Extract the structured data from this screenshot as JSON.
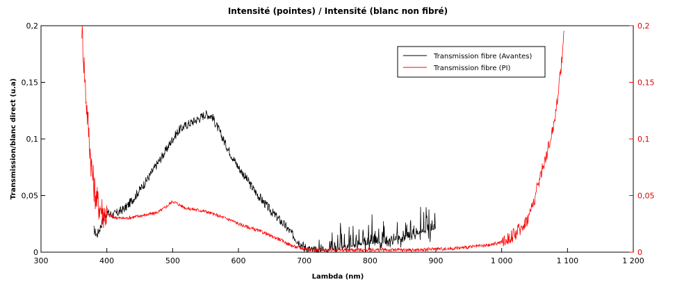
{
  "chart_data": {
    "type": "line",
    "title": "Intensité (pointes) / Intensité (blanc non fibré)",
    "xlabel": "Lambda (nm)",
    "ylabel": "Transmission/blanc direct (u.a)",
    "xlim": [
      300,
      1200
    ],
    "ylim": [
      0,
      0.2
    ],
    "y2lim": [
      0,
      0.2
    ],
    "x_ticks": [
      300,
      400,
      500,
      600,
      700,
      800,
      900,
      1000,
      1100,
      1200
    ],
    "x_tick_labels": [
      "300",
      "400",
      "500",
      "600",
      "700",
      "800",
      "900",
      "1 000",
      "1 100",
      "1 200"
    ],
    "y_ticks": [
      0,
      0.05,
      0.1,
      0.15,
      0.2
    ],
    "y_tick_labels": [
      "0",
      "0,05",
      "0,1",
      "0,15",
      "0,2"
    ],
    "y2_tick_labels": [
      "0",
      "0,05",
      "0,1",
      "0,15",
      "0,2"
    ],
    "grid": false,
    "legend_position": "top-right",
    "series": [
      {
        "name": "Transmission fibre (Avantes)",
        "color": "#000000",
        "axis": "left",
        "x": [
          380,
          385,
          390,
          395,
          400,
          405,
          410,
          420,
          430,
          440,
          450,
          460,
          470,
          480,
          490,
          500,
          510,
          520,
          530,
          540,
          550,
          560,
          570,
          580,
          590,
          600,
          610,
          620,
          630,
          640,
          650,
          660,
          670,
          680,
          690,
          700,
          710,
          720,
          740,
          760,
          780,
          800,
          820,
          840,
          860,
          870,
          880,
          890,
          900
        ],
        "y": [
          0.02,
          0.015,
          0.022,
          0.03,
          0.035,
          0.034,
          0.033,
          0.036,
          0.04,
          0.047,
          0.055,
          0.063,
          0.072,
          0.081,
          0.09,
          0.1,
          0.108,
          0.112,
          0.115,
          0.118,
          0.122,
          0.12,
          0.108,
          0.096,
          0.085,
          0.075,
          0.067,
          0.058,
          0.05,
          0.043,
          0.036,
          0.03,
          0.024,
          0.017,
          0.01,
          0.005,
          0.002,
          0.001,
          0.002,
          0.004,
          0.006,
          0.007,
          0.009,
          0.011,
          0.013,
          0.015,
          0.018,
          0.02,
          0.02
        ]
      },
      {
        "name": "Transmission fibre (PI)",
        "color": "#ff0000",
        "axis": "right",
        "x": [
          362,
          365,
          368,
          372,
          376,
          380,
          385,
          390,
          395,
          400,
          410,
          420,
          430,
          440,
          450,
          460,
          470,
          480,
          490,
          500,
          510,
          520,
          530,
          540,
          550,
          560,
          570,
          580,
          590,
          600,
          610,
          620,
          630,
          640,
          650,
          660,
          670,
          680,
          690,
          700,
          720,
          740,
          760,
          780,
          800,
          820,
          840,
          860,
          880,
          900,
          920,
          940,
          960,
          980,
          1000,
          1010,
          1020,
          1030,
          1040,
          1050,
          1060,
          1070,
          1080,
          1090,
          1095
        ],
        "y": [
          0.2,
          0.17,
          0.14,
          0.11,
          0.08,
          0.06,
          0.045,
          0.04,
          0.035,
          0.033,
          0.031,
          0.03,
          0.03,
          0.031,
          0.032,
          0.033,
          0.034,
          0.036,
          0.04,
          0.045,
          0.042,
          0.039,
          0.038,
          0.037,
          0.036,
          0.034,
          0.032,
          0.03,
          0.028,
          0.025,
          0.023,
          0.021,
          0.019,
          0.017,
          0.014,
          0.012,
          0.009,
          0.006,
          0.004,
          0.003,
          0.002,
          0.002,
          0.002,
          0.002,
          0.002,
          0.002,
          0.002,
          0.002,
          0.002,
          0.003,
          0.003,
          0.004,
          0.005,
          0.006,
          0.009,
          0.012,
          0.016,
          0.022,
          0.03,
          0.047,
          0.07,
          0.09,
          0.115,
          0.16,
          0.2
        ]
      }
    ]
  }
}
